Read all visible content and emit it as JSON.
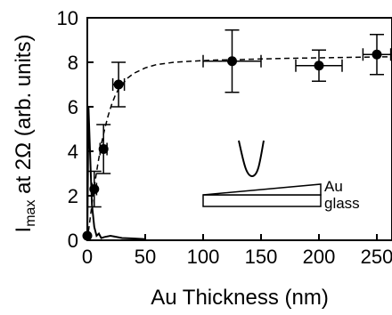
{
  "chart_data": {
    "type": "scatter",
    "xlabel": "Au Thickness (nm)",
    "ylabel_main": "I",
    "ylabel_sub": "max",
    "ylabel_rest": " at 2Ω (arb. units)",
    "xlim": [
      0,
      260
    ],
    "ylim": [
      0,
      10
    ],
    "xticks": [
      0,
      50,
      100,
      150,
      200,
      250
    ],
    "yticks": [
      0,
      2,
      4,
      6,
      8,
      10
    ],
    "grid": false,
    "series": [
      {
        "marker": "filled-circle",
        "color": "#000000",
        "points": [
          {
            "x": 0,
            "y": 0.2,
            "xerr": 0,
            "yerr": 0
          },
          {
            "x": 6,
            "y": 2.3,
            "xerr": 2,
            "yerr": 0.8
          },
          {
            "x": 14,
            "y": 4.1,
            "xerr": 3,
            "yerr": 1.1
          },
          {
            "x": 27,
            "y": 7.0,
            "xerr": 5,
            "yerr": 1.0
          },
          {
            "x": 125,
            "y": 8.05,
            "xerr": 25,
            "yerr": 1.4
          },
          {
            "x": 200,
            "y": 7.85,
            "xerr": 20,
            "yerr": 0.7
          },
          {
            "x": 250,
            "y": 8.35,
            "xerr": 12,
            "yerr": 0.9
          }
        ]
      }
    ],
    "fit_curve": {
      "style": "dashed",
      "x": [
        0,
        3,
        6,
        9,
        12,
        15,
        18,
        21,
        24,
        27,
        30,
        35,
        40,
        50,
        60,
        75,
        90,
        110,
        130,
        150,
        175,
        200,
        225,
        260
      ],
      "y": [
        0,
        1.2,
        2.4,
        3.4,
        4.3,
        5.0,
        5.6,
        6.1,
        6.5,
        6.8,
        7.0,
        7.3,
        7.5,
        7.75,
        7.9,
        8.0,
        8.05,
        8.1,
        8.12,
        8.15,
        8.18,
        8.2,
        8.22,
        8.25
      ]
    },
    "solid_curve": {
      "style": "solid",
      "x": [
        0,
        1,
        2,
        3,
        4,
        6,
        8,
        10,
        12,
        15,
        20,
        30,
        40,
        50
      ],
      "y": [
        0.0,
        6.0,
        4.5,
        3.0,
        1.6,
        0.6,
        0.2,
        0.3,
        0.1,
        0.15,
        0.2,
        0.1,
        0.08,
        0.05
      ]
    },
    "inset": {
      "labels": [
        "Au",
        "glass"
      ]
    }
  }
}
